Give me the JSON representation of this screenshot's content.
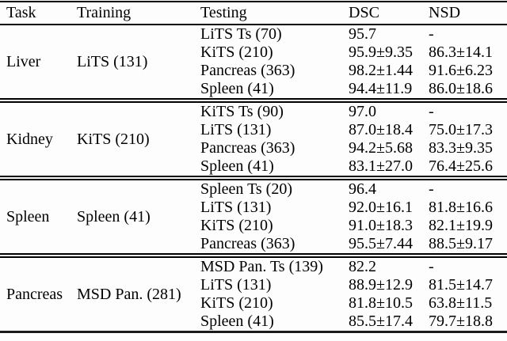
{
  "table": {
    "headers": [
      "Task",
      "Training",
      "Testing",
      "DSC",
      "NSD"
    ],
    "sections": [
      {
        "task": "Liver",
        "training": "LiTS (131)",
        "rows": [
          {
            "testing": "LiTS Ts (70)",
            "dsc": "95.7",
            "nsd": "-"
          },
          {
            "testing": "KiTS (210)",
            "dsc": "95.9±9.35",
            "nsd": "86.3±14.1"
          },
          {
            "testing": "Pancreas (363)",
            "dsc": "98.2±1.44",
            "nsd": "91.6±6.23"
          },
          {
            "testing": "Spleen (41)",
            "dsc": "94.4±11.9",
            "nsd": "86.0±18.6"
          }
        ]
      },
      {
        "task": "Kidney",
        "training": "KiTS (210)",
        "rows": [
          {
            "testing": "KiTS Ts (90)",
            "dsc": "97.0",
            "nsd": "-"
          },
          {
            "testing": "LiTS (131)",
            "dsc": "87.0±18.4",
            "nsd": "75.0±17.3"
          },
          {
            "testing": "Pancreas (363)",
            "dsc": "94.2±5.68",
            "nsd": "83.3±9.35"
          },
          {
            "testing": "Spleen (41)",
            "dsc": "83.1±27.0",
            "nsd": "76.4±25.6"
          }
        ]
      },
      {
        "task": "Spleen",
        "training": "Spleen (41)",
        "rows": [
          {
            "testing": "Spleen Ts (20)",
            "dsc": "96.4",
            "nsd": "-"
          },
          {
            "testing": "LiTS (131)",
            "dsc": "92.0±16.1",
            "nsd": "81.8±16.6"
          },
          {
            "testing": "KiTS (210)",
            "dsc": "91.0±18.3",
            "nsd": "82.1±19.9"
          },
          {
            "testing": "Pancreas (363)",
            "dsc": "95.5±7.44",
            "nsd": "88.5±9.17"
          }
        ]
      },
      {
        "task": "Pancreas",
        "training": "MSD Pan. (281)",
        "rows": [
          {
            "testing": "MSD Pan. Ts (139)",
            "dsc": "82.2",
            "nsd": "-"
          },
          {
            "testing": "LiTS (131)",
            "dsc": "88.9±12.9",
            "nsd": "81.5±14.7"
          },
          {
            "testing": "KiTS (210)",
            "dsc": "81.8±10.5",
            "nsd": "63.8±11.5"
          },
          {
            "testing": "Spleen (41)",
            "dsc": "85.5±17.4",
            "nsd": "79.7±18.8"
          }
        ]
      }
    ]
  },
  "colors": {
    "text": "#000000",
    "rule": "#000000",
    "background": "#fdfdfd"
  }
}
